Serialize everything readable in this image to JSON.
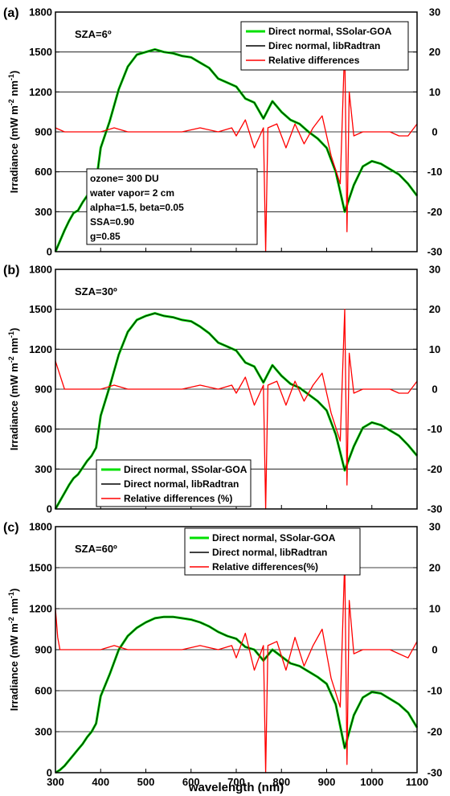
{
  "chart_data": [
    {
      "type": "line",
      "panel_label": "(a)",
      "annotation": "SZA=6º",
      "ylabel": "Irradiance (mW m-2 nm-1)",
      "ylabel_parts": [
        "Irradiance (mW m",
        "-2",
        " nm",
        "-1",
        ")"
      ],
      "xlabel": "",
      "xlim": [
        300,
        1100
      ],
      "ylim": [
        0,
        1800
      ],
      "y2lim": [
        -30,
        30
      ],
      "x_ticks": [
        300,
        400,
        500,
        600,
        700,
        800,
        900,
        1000,
        1100
      ],
      "y_ticks": [
        0,
        300,
        600,
        900,
        1200,
        1500,
        1800
      ],
      "y2_ticks": [
        -30,
        -20,
        -10,
        0,
        10,
        20,
        30
      ],
      "grid": true,
      "legend": [
        "Direct normal, SSolar-GOA",
        "Direc normal, libRadtran",
        "Relative differences"
      ],
      "legend_position": "top-right",
      "info_box": [
        "ozone= 300 DU",
        "water vapor= 2 cm",
        "alpha=1.5, beta=0.05",
        "SSA=0.90",
        "g=0.85"
      ],
      "series": [
        {
          "color": "#00e000",
          "x": [
            300,
            310,
            320,
            330,
            340,
            350,
            360,
            370,
            380,
            390,
            400,
            420,
            440,
            460,
            480,
            500,
            520,
            540,
            560,
            580,
            600,
            620,
            640,
            660,
            680,
            700,
            720,
            740,
            760,
            780,
            800,
            820,
            840,
            860,
            880,
            900,
            920,
            940,
            960,
            980,
            1000,
            1020,
            1040,
            1060,
            1080,
            1100
          ],
          "values": [
            0,
            80,
            160,
            230,
            290,
            310,
            370,
            420,
            450,
            520,
            780,
            980,
            1220,
            1390,
            1480,
            1500,
            1520,
            1500,
            1490,
            1470,
            1460,
            1420,
            1380,
            1300,
            1270,
            1240,
            1150,
            1120,
            1000,
            1130,
            1050,
            990,
            960,
            900,
            850,
            780,
            600,
            300,
            500,
            640,
            680,
            660,
            620,
            580,
            510,
            420
          ]
        },
        {
          "color": "#000000",
          "x": [
            300,
            310,
            320,
            330,
            340,
            350,
            360,
            370,
            380,
            390,
            400,
            420,
            440,
            460,
            480,
            500,
            520,
            540,
            560,
            580,
            600,
            620,
            640,
            660,
            680,
            700,
            720,
            740,
            760,
            780,
            800,
            820,
            840,
            860,
            880,
            900,
            920,
            940,
            960,
            980,
            1000,
            1020,
            1040,
            1060,
            1080,
            1100
          ],
          "values": [
            0,
            80,
            160,
            230,
            290,
            310,
            370,
            420,
            450,
            520,
            780,
            980,
            1220,
            1390,
            1480,
            1500,
            1520,
            1500,
            1490,
            1470,
            1460,
            1420,
            1380,
            1300,
            1270,
            1240,
            1150,
            1120,
            1000,
            1130,
            1050,
            990,
            960,
            900,
            850,
            780,
            600,
            300,
            500,
            640,
            680,
            660,
            620,
            580,
            510,
            420
          ]
        },
        {
          "color": "#ff0000",
          "axis": "right",
          "x": [
            300,
            320,
            340,
            360,
            380,
            400,
            430,
            460,
            500,
            540,
            580,
            620,
            660,
            690,
            700,
            720,
            740,
            760,
            765,
            770,
            790,
            810,
            830,
            850,
            870,
            890,
            910,
            930,
            940,
            945,
            950,
            960,
            980,
            1000,
            1020,
            1040,
            1060,
            1080,
            1100
          ],
          "values": [
            1,
            0,
            0,
            0,
            0,
            0,
            1,
            0,
            0,
            0,
            0,
            1,
            0,
            1,
            -1,
            3,
            -4,
            1,
            -30,
            1,
            2,
            -4,
            2,
            -3,
            1,
            4,
            -6,
            -13,
            22,
            -25,
            10,
            -1,
            0,
            0,
            0,
            0,
            -1,
            -1,
            2
          ]
        }
      ]
    },
    {
      "type": "line",
      "panel_label": "(b)",
      "annotation": "SZA=30º",
      "ylabel": "Irradiance (mW m-2 nm-1)",
      "ylabel_parts": [
        "Irradiance (mW m",
        "-2",
        " nm",
        "-1",
        ")"
      ],
      "xlabel": "",
      "xlim": [
        300,
        1100
      ],
      "ylim": [
        0,
        1800
      ],
      "y2lim": [
        -30,
        30
      ],
      "x_ticks": [
        300,
        400,
        500,
        600,
        700,
        800,
        900,
        1000,
        1100
      ],
      "y_ticks": [
        0,
        300,
        600,
        900,
        1200,
        1500,
        1800
      ],
      "y2_ticks": [
        -30,
        -20,
        -10,
        0,
        10,
        20,
        30
      ],
      "grid": true,
      "legend": [
        "Direct normal, SSolar-GOA",
        "Direct normal, libRadtran",
        "Relative differences (%)"
      ],
      "legend_position": "bottom-left",
      "series": [
        {
          "color": "#00e000",
          "x": [
            300,
            310,
            320,
            330,
            340,
            350,
            360,
            370,
            380,
            390,
            400,
            420,
            440,
            460,
            480,
            500,
            520,
            540,
            560,
            580,
            600,
            620,
            640,
            660,
            680,
            700,
            720,
            740,
            760,
            780,
            800,
            820,
            840,
            860,
            880,
            900,
            920,
            940,
            960,
            980,
            1000,
            1020,
            1040,
            1060,
            1080,
            1100
          ],
          "values": [
            0,
            60,
            120,
            180,
            230,
            260,
            310,
            360,
            400,
            460,
            700,
            920,
            1160,
            1330,
            1420,
            1450,
            1470,
            1450,
            1440,
            1420,
            1410,
            1370,
            1320,
            1250,
            1220,
            1190,
            1100,
            1070,
            950,
            1080,
            1000,
            940,
            910,
            860,
            810,
            740,
            560,
            290,
            470,
            610,
            650,
            630,
            590,
            550,
            480,
            400
          ]
        },
        {
          "color": "#000000",
          "x": [
            300,
            310,
            320,
            330,
            340,
            350,
            360,
            370,
            380,
            390,
            400,
            420,
            440,
            460,
            480,
            500,
            520,
            540,
            560,
            580,
            600,
            620,
            640,
            660,
            680,
            700,
            720,
            740,
            760,
            780,
            800,
            820,
            840,
            860,
            880,
            900,
            920,
            940,
            960,
            980,
            1000,
            1020,
            1040,
            1060,
            1080,
            1100
          ],
          "values": [
            0,
            60,
            120,
            180,
            230,
            260,
            310,
            360,
            400,
            460,
            700,
            920,
            1160,
            1330,
            1420,
            1450,
            1470,
            1450,
            1440,
            1420,
            1410,
            1370,
            1320,
            1250,
            1220,
            1190,
            1100,
            1070,
            950,
            1080,
            1000,
            940,
            910,
            860,
            810,
            740,
            560,
            290,
            470,
            610,
            650,
            630,
            590,
            550,
            480,
            400
          ]
        },
        {
          "color": "#ff0000",
          "axis": "right",
          "x": [
            300,
            320,
            340,
            360,
            380,
            400,
            430,
            460,
            500,
            540,
            580,
            620,
            660,
            690,
            700,
            720,
            740,
            760,
            765,
            770,
            790,
            810,
            830,
            850,
            870,
            890,
            910,
            930,
            940,
            945,
            950,
            960,
            980,
            1000,
            1020,
            1040,
            1060,
            1080,
            1100
          ],
          "values": [
            7,
            0,
            0,
            0,
            0,
            0,
            1,
            0,
            0,
            0,
            0,
            1,
            0,
            1,
            -1,
            3,
            -4,
            1,
            -30,
            1,
            2,
            -4,
            2,
            -3,
            1,
            4,
            -6,
            -13,
            20,
            -24,
            9,
            -1,
            0,
            0,
            0,
            0,
            -1,
            -1,
            2
          ]
        }
      ]
    },
    {
      "type": "line",
      "panel_label": "(c)",
      "annotation": "SZA=60º",
      "ylabel": "Irradiance (mW m-2 nm-1)",
      "ylabel_parts": [
        "Irradiance (mW m",
        "-2",
        " nm",
        "-1",
        ")"
      ],
      "xlabel": "wavelength (nm)",
      "xlim": [
        300,
        1100
      ],
      "ylim": [
        0,
        1800
      ],
      "y2lim": [
        -30,
        30
      ],
      "x_ticks": [
        300,
        400,
        500,
        600,
        700,
        800,
        900,
        1000,
        1100
      ],
      "y_ticks": [
        0,
        300,
        600,
        900,
        1200,
        1500,
        1800
      ],
      "y2_ticks": [
        -30,
        -20,
        -10,
        0,
        10,
        20,
        30
      ],
      "grid": true,
      "legend": [
        "Direct normal, SSolar-GOA",
        "Direct normal, libRadtran",
        "Relative differences(%)"
      ],
      "legend_position": "top-right",
      "series": [
        {
          "color": "#00e000",
          "x": [
            300,
            310,
            320,
            330,
            340,
            350,
            360,
            370,
            380,
            390,
            400,
            420,
            440,
            460,
            480,
            500,
            520,
            540,
            560,
            580,
            600,
            620,
            640,
            660,
            680,
            700,
            720,
            740,
            760,
            780,
            800,
            820,
            840,
            860,
            880,
            900,
            920,
            940,
            960,
            980,
            1000,
            1020,
            1040,
            1060,
            1080,
            1100
          ],
          "values": [
            0,
            20,
            50,
            90,
            130,
            170,
            210,
            260,
            300,
            360,
            560,
            720,
            900,
            1000,
            1060,
            1100,
            1130,
            1140,
            1140,
            1130,
            1120,
            1100,
            1070,
            1030,
            1000,
            980,
            920,
            900,
            820,
            900,
            850,
            800,
            780,
            740,
            700,
            650,
            500,
            180,
            420,
            550,
            590,
            580,
            540,
            500,
            440,
            330
          ]
        },
        {
          "color": "#000000",
          "x": [
            300,
            310,
            320,
            330,
            340,
            350,
            360,
            370,
            380,
            390,
            400,
            420,
            440,
            460,
            480,
            500,
            520,
            540,
            560,
            580,
            600,
            620,
            640,
            660,
            680,
            700,
            720,
            740,
            760,
            780,
            800,
            820,
            840,
            860,
            880,
            900,
            920,
            940,
            960,
            980,
            1000,
            1020,
            1040,
            1060,
            1080,
            1100
          ],
          "values": [
            0,
            20,
            50,
            90,
            130,
            170,
            210,
            260,
            300,
            360,
            560,
            720,
            900,
            1000,
            1060,
            1100,
            1130,
            1140,
            1140,
            1130,
            1120,
            1100,
            1070,
            1030,
            1000,
            980,
            920,
            900,
            820,
            900,
            850,
            800,
            780,
            740,
            700,
            650,
            500,
            180,
            420,
            550,
            590,
            580,
            540,
            500,
            440,
            330
          ]
        },
        {
          "color": "#ff0000",
          "axis": "right",
          "x": [
            300,
            305,
            310,
            320,
            340,
            360,
            380,
            400,
            430,
            460,
            500,
            540,
            580,
            620,
            660,
            690,
            700,
            720,
            740,
            760,
            765,
            770,
            790,
            810,
            830,
            850,
            870,
            890,
            910,
            930,
            940,
            945,
            950,
            960,
            980,
            1000,
            1020,
            1040,
            1060,
            1080,
            1100
          ],
          "values": [
            10,
            3,
            0,
            0,
            0,
            0,
            0,
            0,
            1,
            0,
            0,
            0,
            0,
            1,
            0,
            1,
            -2,
            4,
            -5,
            1,
            -30,
            1,
            2,
            -5,
            3,
            -4,
            1,
            5,
            -7,
            -14,
            22,
            -28,
            12,
            -1,
            0,
            0,
            0,
            0,
            -1,
            -2,
            2
          ]
        }
      ]
    }
  ]
}
